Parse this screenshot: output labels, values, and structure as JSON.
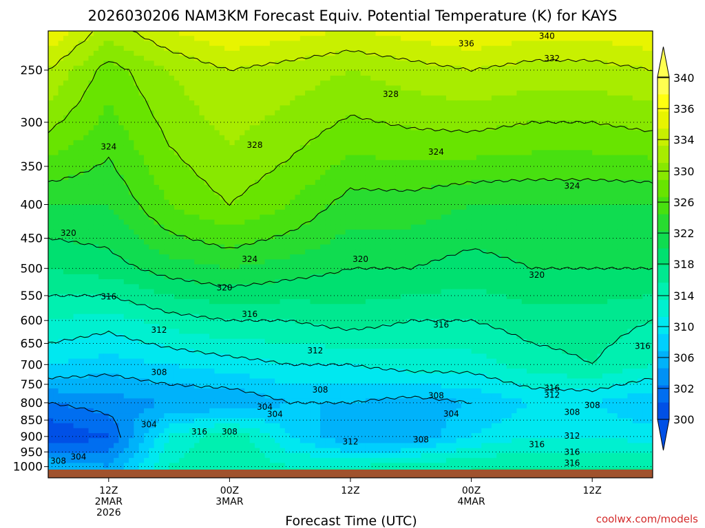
{
  "title": "2026030206 NAM3KM Forecast Equiv. Potential Temperature (K) for KAYS",
  "xlabel": "Forecast Time (UTC)",
  "credit": "coolwx.com/models",
  "colors": {
    "ground": "#a0522d",
    "contour": "#000000"
  },
  "chart_data": {
    "type": "heatmap",
    "title": "2026030206 NAM3KM Forecast Equiv. Potential Temperature (K) for KAYS",
    "xlabel": "Forecast Time (UTC)",
    "ylabel": "",
    "y_scale": "log",
    "y_inverted": true,
    "y_ticks": [
      250,
      300,
      350,
      400,
      450,
      500,
      550,
      600,
      650,
      700,
      750,
      800,
      850,
      900,
      950,
      1000
    ],
    "y_tick_labels": [
      "250",
      "300",
      "350",
      "400",
      "450",
      "500",
      "550",
      "600",
      "650",
      "700",
      "750",
      "800",
      "850",
      "900",
      "950",
      "1000"
    ],
    "x_range_hours": [
      0,
      60
    ],
    "x_ticks": [
      {
        "hour": 6,
        "lines": [
          "12Z",
          "2MAR",
          "2026"
        ]
      },
      {
        "hour": 18,
        "lines": [
          "00Z",
          "3MAR"
        ]
      },
      {
        "hour": 30,
        "lines": [
          "12Z"
        ]
      },
      {
        "hour": 42,
        "lines": [
          "00Z",
          "4MAR"
        ]
      },
      {
        "hour": 54,
        "lines": [
          "12Z"
        ]
      }
    ],
    "colorbar": {
      "levels": [
        300,
        302,
        304,
        306,
        308,
        310,
        312,
        314,
        316,
        318,
        320,
        322,
        324,
        326,
        328,
        330,
        332,
        334,
        336,
        338,
        340
      ],
      "labels": [
        "300",
        "302",
        "306",
        "310",
        "314",
        "318",
        "322",
        "326",
        "330",
        "334",
        "336",
        "340"
      ],
      "colors": [
        "#0050e6",
        "#006ef0",
        "#0091f5",
        "#00b2fa",
        "#00cffd",
        "#00e8f0",
        "#00f0d0",
        "#00f0b0",
        "#00e890",
        "#00e070",
        "#10dc50",
        "#28dc30",
        "#48e010",
        "#68e400",
        "#88e800",
        "#a8ec00",
        "#c8f000",
        "#e8f400",
        "#ffff10",
        "#ffff50"
      ]
    },
    "profile_columns": [
      {
        "hour": 0,
        "p250": 332,
        "p400": 322,
        "p500": 318,
        "p600": 314,
        "p700": 310,
        "p800": 304,
        "p900": 300,
        "p1000": 308
      },
      {
        "hour": 6,
        "p250": 327,
        "p400": 322,
        "p500": 319,
        "p600": 313,
        "p700": 309,
        "p800": 305,
        "p900": 302,
        "p1000": 306
      },
      {
        "hour": 12,
        "p250": 330,
        "p400": 326,
        "p500": 321,
        "p600": 315,
        "p700": 310,
        "p800": 306,
        "p900": 312,
        "p1000": 314
      },
      {
        "hour": 18,
        "p250": 332,
        "p400": 328,
        "p500": 322,
        "p600": 316,
        "p700": 311,
        "p800": 306,
        "p900": 316,
        "p1000": 316
      },
      {
        "hour": 24,
        "p250": 331,
        "p400": 326,
        "p500": 321,
        "p600": 316,
        "p700": 312,
        "p800": 308,
        "p900": 310,
        "p1000": 314
      },
      {
        "hour": 30,
        "p250": 330,
        "p400": 323,
        "p500": 320,
        "p600": 317,
        "p700": 312,
        "p800": 308,
        "p900": 306,
        "p1000": 314
      },
      {
        "hour": 36,
        "p250": 331,
        "p400": 323,
        "p500": 320,
        "p600": 316,
        "p700": 313,
        "p800": 307,
        "p900": 306,
        "p1000": 315
      },
      {
        "hour": 42,
        "p250": 332,
        "p400": 322,
        "p500": 319,
        "p600": 316,
        "p700": 313,
        "p800": 308,
        "p900": 310,
        "p1000": 316
      },
      {
        "hour": 48,
        "p250": 331,
        "p400": 322,
        "p500": 320,
        "p600": 317,
        "p700": 315,
        "p800": 310,
        "p900": 312,
        "p1000": 316
      },
      {
        "hour": 54,
        "p250": 331,
        "p400": 322,
        "p500": 320,
        "p600": 317,
        "p700": 316,
        "p800": 310,
        "p900": 312,
        "p1000": 316
      },
      {
        "hour": 60,
        "p250": 332,
        "p400": 322,
        "p500": 320,
        "p600": 316,
        "p700": 314,
        "p800": 308,
        "p900": 311,
        "p1000": 316
      }
    ],
    "contour_labels": [
      {
        "text": "340",
        "hour": 49.5,
        "p": 222
      },
      {
        "text": "336",
        "hour": 41.5,
        "p": 228
      },
      {
        "text": "332",
        "hour": 50,
        "p": 240
      },
      {
        "text": "328",
        "hour": 34,
        "p": 272
      },
      {
        "text": "328",
        "hour": 20.5,
        "p": 325
      },
      {
        "text": "324",
        "hour": 6,
        "p": 327
      },
      {
        "text": "324",
        "hour": 38.5,
        "p": 333
      },
      {
        "text": "324",
        "hour": 52,
        "p": 375
      },
      {
        "text": "324",
        "hour": 20,
        "p": 484
      },
      {
        "text": "320",
        "hour": 2,
        "p": 442
      },
      {
        "text": "320",
        "hour": 31,
        "p": 484
      },
      {
        "text": "320",
        "hour": 48.5,
        "p": 512
      },
      {
        "text": "320",
        "hour": 17.5,
        "p": 535
      },
      {
        "text": "316",
        "hour": 6,
        "p": 552
      },
      {
        "text": "316",
        "hour": 20,
        "p": 587
      },
      {
        "text": "316",
        "hour": 39,
        "p": 609
      },
      {
        "text": "316",
        "hour": 59,
        "p": 656
      },
      {
        "text": "312",
        "hour": 11,
        "p": 620
      },
      {
        "text": "312",
        "hour": 26.5,
        "p": 667
      },
      {
        "text": "308",
        "hour": 11,
        "p": 719
      },
      {
        "text": "308",
        "hour": 27,
        "p": 765
      },
      {
        "text": "308",
        "hour": 38.5,
        "p": 780
      },
      {
        "text": "316",
        "hour": 50,
        "p": 760
      },
      {
        "text": "312",
        "hour": 50,
        "p": 778
      },
      {
        "text": "308",
        "hour": 54,
        "p": 807
      },
      {
        "text": "308",
        "hour": 52,
        "p": 827
      },
      {
        "text": "304",
        "hour": 21.5,
        "p": 812
      },
      {
        "text": "304",
        "hour": 22.5,
        "p": 833
      },
      {
        "text": "304",
        "hour": 10,
        "p": 863
      },
      {
        "text": "316",
        "hour": 15,
        "p": 885
      },
      {
        "text": "308",
        "hour": 18,
        "p": 885
      },
      {
        "text": "304",
        "hour": 40,
        "p": 832
      },
      {
        "text": "312",
        "hour": 30,
        "p": 917
      },
      {
        "text": "308",
        "hour": 37,
        "p": 910
      },
      {
        "text": "312",
        "hour": 52,
        "p": 898
      },
      {
        "text": "316",
        "hour": 48.5,
        "p": 925
      },
      {
        "text": "316",
        "hour": 52,
        "p": 950
      },
      {
        "text": "316",
        "hour": 52,
        "p": 988
      },
      {
        "text": "304",
        "hour": 3,
        "p": 966
      },
      {
        "text": "308",
        "hour": 1,
        "p": 980
      }
    ]
  }
}
